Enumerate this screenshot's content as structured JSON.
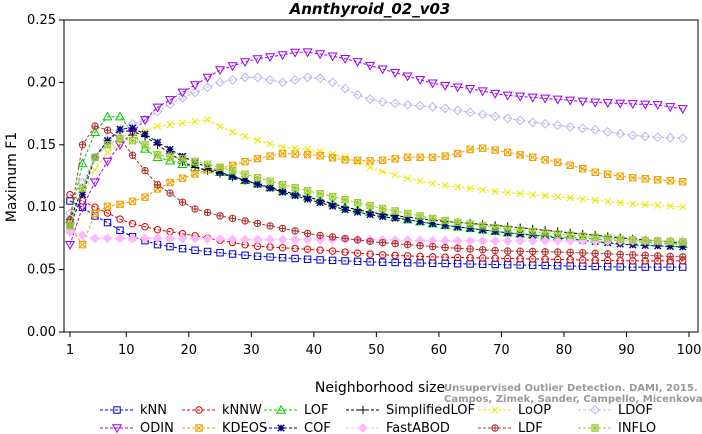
{
  "chart_data": {
    "type": "line",
    "title": "Annthyroid_02_v03",
    "xlabel": "Neighborhood size",
    "ylabel": "Maximum F1",
    "xlim": [
      1,
      100
    ],
    "ylim": [
      0.0,
      0.25
    ],
    "xticks": [
      1,
      10,
      20,
      30,
      40,
      50,
      60,
      70,
      80,
      90,
      100
    ],
    "yticks": [
      0.0,
      0.05,
      0.1,
      0.15,
      0.2,
      0.25
    ],
    "ytick_labels": [
      "0.00",
      "0.05",
      "0.10",
      "0.15",
      "0.20",
      "0.25"
    ],
    "grid": false,
    "legend_position": "bottom",
    "credit": [
      "Unsupervised Outlier Detection. DAMI, 2015.",
      "Campos, Zimek, Sander, Campello, Micenkova, Schubert, Assent, Houle"
    ],
    "series": [
      {
        "name": "kNN",
        "color": "#0000cc",
        "marker": "square",
        "points": [
          [
            1,
            0.105
          ],
          [
            3,
            0.1
          ],
          [
            5,
            0.093
          ],
          [
            8,
            0.085
          ],
          [
            10,
            0.078
          ],
          [
            15,
            0.07
          ],
          [
            20,
            0.066
          ],
          [
            30,
            0.061
          ],
          [
            40,
            0.058
          ],
          [
            50,
            0.056
          ],
          [
            60,
            0.055
          ],
          [
            70,
            0.054
          ],
          [
            80,
            0.053
          ],
          [
            90,
            0.052
          ],
          [
            100,
            0.052
          ]
        ]
      },
      {
        "name": "kNNW",
        "color": "#dd0000",
        "marker": "circle",
        "points": [
          [
            1,
            0.11
          ],
          [
            3,
            0.105
          ],
          [
            5,
            0.1
          ],
          [
            8,
            0.093
          ],
          [
            10,
            0.088
          ],
          [
            15,
            0.082
          ],
          [
            20,
            0.078
          ],
          [
            30,
            0.069
          ],
          [
            40,
            0.066
          ],
          [
            50,
            0.062
          ],
          [
            60,
            0.06
          ],
          [
            70,
            0.059
          ],
          [
            80,
            0.058
          ],
          [
            90,
            0.057
          ],
          [
            100,
            0.057
          ]
        ]
      },
      {
        "name": "LOF",
        "color": "#00cc00",
        "marker": "triangle",
        "points": [
          [
            1,
            0.09
          ],
          [
            2,
            0.12
          ],
          [
            4,
            0.15
          ],
          [
            6,
            0.17
          ],
          [
            8,
            0.175
          ],
          [
            10,
            0.17
          ],
          [
            12,
            0.15
          ],
          [
            15,
            0.14
          ],
          [
            20,
            0.133
          ],
          [
            25,
            0.128
          ],
          [
            30,
            0.12
          ],
          [
            35,
            0.113
          ],
          [
            40,
            0.107
          ],
          [
            45,
            0.1
          ],
          [
            50,
            0.095
          ],
          [
            55,
            0.09
          ],
          [
            60,
            0.086
          ],
          [
            70,
            0.08
          ],
          [
            80,
            0.076
          ],
          [
            90,
            0.073
          ],
          [
            100,
            0.07
          ]
        ]
      },
      {
        "name": "SimplifiedLOF",
        "color": "#000000",
        "marker": "plus",
        "points": [
          [
            1,
            0.09
          ],
          [
            3,
            0.115
          ],
          [
            5,
            0.14
          ],
          [
            8,
            0.16
          ],
          [
            10,
            0.162
          ],
          [
            12,
            0.16
          ],
          [
            15,
            0.15
          ],
          [
            20,
            0.133
          ],
          [
            25,
            0.127
          ],
          [
            30,
            0.12
          ],
          [
            35,
            0.113
          ],
          [
            40,
            0.107
          ],
          [
            45,
            0.1
          ],
          [
            50,
            0.095
          ],
          [
            55,
            0.092
          ],
          [
            60,
            0.089
          ],
          [
            70,
            0.085
          ],
          [
            80,
            0.08
          ],
          [
            90,
            0.075
          ],
          [
            100,
            0.071
          ]
        ]
      },
      {
        "name": "LoOP",
        "color": "#e8e800",
        "marker": "x",
        "points": [
          [
            1,
            0.085
          ],
          [
            3,
            0.11
          ],
          [
            6,
            0.14
          ],
          [
            10,
            0.155
          ],
          [
            15,
            0.165
          ],
          [
            20,
            0.168
          ],
          [
            23,
            0.17
          ],
          [
            26,
            0.162
          ],
          [
            30,
            0.155
          ],
          [
            35,
            0.148
          ],
          [
            40,
            0.146
          ],
          [
            45,
            0.14
          ],
          [
            50,
            0.13
          ],
          [
            55,
            0.123
          ],
          [
            60,
            0.118
          ],
          [
            65,
            0.115
          ],
          [
            70,
            0.112
          ],
          [
            80,
            0.108
          ],
          [
            90,
            0.103
          ],
          [
            100,
            0.1
          ]
        ]
      },
      {
        "name": "LDOF",
        "color": "#b8b8f0",
        "marker": "diamond",
        "points": [
          [
            1,
            0.095
          ],
          [
            3,
            0.12
          ],
          [
            6,
            0.15
          ],
          [
            10,
            0.165
          ],
          [
            13,
            0.17
          ],
          [
            16,
            0.18
          ],
          [
            20,
            0.19
          ],
          [
            25,
            0.2
          ],
          [
            30,
            0.205
          ],
          [
            35,
            0.2
          ],
          [
            40,
            0.205
          ],
          [
            43,
            0.2
          ],
          [
            47,
            0.19
          ],
          [
            50,
            0.185
          ],
          [
            55,
            0.182
          ],
          [
            60,
            0.18
          ],
          [
            65,
            0.176
          ],
          [
            70,
            0.172
          ],
          [
            75,
            0.168
          ],
          [
            80,
            0.165
          ],
          [
            85,
            0.162
          ],
          [
            90,
            0.158
          ],
          [
            95,
            0.156
          ],
          [
            100,
            0.155
          ]
        ]
      },
      {
        "name": "ODIN",
        "color": "#9900ee",
        "marker": "triangle-down",
        "points": [
          [
            1,
            0.07
          ],
          [
            3,
            0.1
          ],
          [
            6,
            0.13
          ],
          [
            9,
            0.15
          ],
          [
            12,
            0.165
          ],
          [
            15,
            0.18
          ],
          [
            20,
            0.195
          ],
          [
            25,
            0.21
          ],
          [
            30,
            0.218
          ],
          [
            35,
            0.222
          ],
          [
            38,
            0.225
          ],
          [
            42,
            0.222
          ],
          [
            46,
            0.218
          ],
          [
            50,
            0.212
          ],
          [
            55,
            0.205
          ],
          [
            60,
            0.198
          ],
          [
            65,
            0.195
          ],
          [
            70,
            0.19
          ],
          [
            75,
            0.188
          ],
          [
            80,
            0.186
          ],
          [
            85,
            0.184
          ],
          [
            90,
            0.183
          ],
          [
            95,
            0.182
          ],
          [
            100,
            0.178
          ]
        ]
      },
      {
        "name": "KDEOS",
        "color": "#f0a000",
        "marker": "square-x",
        "points": [
          [
            1,
            0.085
          ],
          [
            2,
            0.05
          ],
          [
            4,
            0.09
          ],
          [
            6,
            0.1
          ],
          [
            10,
            0.103
          ],
          [
            13,
            0.108
          ],
          [
            16,
            0.118
          ],
          [
            20,
            0.125
          ],
          [
            23,
            0.13
          ],
          [
            26,
            0.132
          ],
          [
            30,
            0.138
          ],
          [
            35,
            0.143
          ],
          [
            40,
            0.142
          ],
          [
            45,
            0.138
          ],
          [
            50,
            0.137
          ],
          [
            55,
            0.14
          ],
          [
            60,
            0.14
          ],
          [
            63,
            0.143
          ],
          [
            66,
            0.148
          ],
          [
            70,
            0.145
          ],
          [
            75,
            0.14
          ],
          [
            80,
            0.135
          ],
          [
            85,
            0.128
          ],
          [
            90,
            0.124
          ],
          [
            95,
            0.122
          ],
          [
            100,
            0.12
          ]
        ]
      },
      {
        "name": "COF",
        "color": "#000080",
        "marker": "asterisk",
        "points": [
          [
            1,
            0.085
          ],
          [
            3,
            0.11
          ],
          [
            5,
            0.14
          ],
          [
            8,
            0.16
          ],
          [
            10,
            0.165
          ],
          [
            12,
            0.162
          ],
          [
            15,
            0.152
          ],
          [
            20,
            0.138
          ],
          [
            25,
            0.128
          ],
          [
            30,
            0.12
          ],
          [
            35,
            0.112
          ],
          [
            40,
            0.105
          ],
          [
            45,
            0.098
          ],
          [
            50,
            0.093
          ],
          [
            55,
            0.09
          ],
          [
            60,
            0.086
          ],
          [
            70,
            0.08
          ],
          [
            80,
            0.075
          ],
          [
            90,
            0.07
          ],
          [
            100,
            0.068
          ]
        ]
      },
      {
        "name": "FastABOD",
        "color": "#ffb8ff",
        "marker": "diamond-filled",
        "points": [
          [
            1,
            0.08
          ],
          [
            5,
            0.075
          ],
          [
            10,
            0.075
          ],
          [
            20,
            0.075
          ],
          [
            30,
            0.074
          ],
          [
            40,
            0.074
          ],
          [
            50,
            0.074
          ],
          [
            60,
            0.073
          ],
          [
            70,
            0.073
          ],
          [
            80,
            0.073
          ],
          [
            90,
            0.073
          ],
          [
            100,
            0.073
          ]
        ]
      },
      {
        "name": "LDF",
        "color": "#b03030",
        "marker": "circle-plus",
        "points": [
          [
            1,
            0.09
          ],
          [
            3,
            0.15
          ],
          [
            4,
            0.165
          ],
          [
            6,
            0.165
          ],
          [
            9,
            0.155
          ],
          [
            12,
            0.135
          ],
          [
            15,
            0.118
          ],
          [
            18,
            0.108
          ],
          [
            20,
            0.1
          ],
          [
            25,
            0.093
          ],
          [
            30,
            0.088
          ],
          [
            35,
            0.083
          ],
          [
            40,
            0.078
          ],
          [
            45,
            0.075
          ],
          [
            50,
            0.072
          ],
          [
            55,
            0.07
          ],
          [
            60,
            0.068
          ],
          [
            70,
            0.065
          ],
          [
            80,
            0.064
          ],
          [
            90,
            0.062
          ],
          [
            100,
            0.06
          ]
        ]
      },
      {
        "name": "INFLO",
        "color": "#99cc33",
        "marker": "square-cross",
        "points": [
          [
            1,
            0.085
          ],
          [
            3,
            0.115
          ],
          [
            5,
            0.14
          ],
          [
            8,
            0.155
          ],
          [
            10,
            0.155
          ],
          [
            13,
            0.15
          ],
          [
            15,
            0.142
          ],
          [
            20,
            0.138
          ],
          [
            25,
            0.132
          ],
          [
            30,
            0.125
          ],
          [
            35,
            0.118
          ],
          [
            40,
            0.112
          ],
          [
            45,
            0.106
          ],
          [
            50,
            0.1
          ],
          [
            55,
            0.095
          ],
          [
            60,
            0.09
          ],
          [
            70,
            0.083
          ],
          [
            80,
            0.078
          ],
          [
            90,
            0.074
          ],
          [
            100,
            0.072
          ]
        ]
      }
    ]
  }
}
